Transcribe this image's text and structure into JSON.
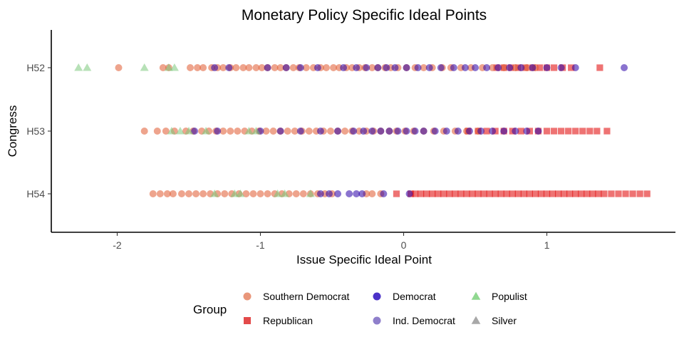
{
  "chart_data": {
    "type": "scatter",
    "title": "Monetary Policy Specific Ideal Points",
    "xlabel": "Issue Specific Ideal Point",
    "ylabel": "Congress",
    "xlim": [
      -2.45,
      1.9
    ],
    "x_ticks": [
      -2,
      -1,
      0,
      1
    ],
    "x_tick_labels": [
      "-2",
      "-1",
      "0",
      "1"
    ],
    "categories": [
      "H52",
      "H53",
      "H54"
    ],
    "grid": false,
    "legend": {
      "title": "Group",
      "position": "bottom",
      "entries": [
        {
          "label": "Southern Democrat",
          "color": "#E9967A",
          "shape": "circle"
        },
        {
          "label": "Republican",
          "color": "#E34A4A",
          "shape": "square"
        },
        {
          "label": "Democrat",
          "color": "#4B32C8",
          "shape": "circle"
        },
        {
          "label": "Ind. Democrat",
          "color": "#8F7FCB",
          "shape": "circle"
        },
        {
          "label": "Populist",
          "color": "#90D890",
          "shape": "triangle"
        },
        {
          "label": "Silver",
          "color": "#A8A8A8",
          "shape": "triangle"
        }
      ]
    },
    "series": [
      {
        "name": "Southern Democrat",
        "color": "#E05A30",
        "shape": "circle",
        "points": [
          {
            "congress": "H52",
            "x": [
              -1.99,
              -1.68,
              -1.64,
              -1.49,
              -1.44,
              -1.4,
              -1.34,
              -1.3,
              -1.26,
              -1.21,
              -1.17,
              -1.12,
              -1.08,
              -1.03,
              -0.99,
              -0.95,
              -0.9,
              -0.86,
              -0.82,
              -0.77,
              -0.73,
              -0.68,
              -0.63,
              -0.58,
              -0.54,
              -0.49,
              -0.45,
              -0.4,
              -0.36,
              -0.31,
              -0.27,
              -0.22,
              -0.18,
              -0.13,
              -0.09,
              -0.04,
              0.02,
              0.08,
              0.14,
              0.2,
              0.27,
              0.33,
              0.4,
              0.47,
              0.55,
              0.62,
              0.7,
              0.78,
              0.86,
              0.92
            ]
          },
          {
            "congress": "H53",
            "x": [
              -1.81,
              -1.72,
              -1.66,
              -1.6,
              -1.52,
              -1.47,
              -1.41,
              -1.36,
              -1.31,
              -1.26,
              -1.21,
              -1.16,
              -1.11,
              -1.06,
              -1.01,
              -0.96,
              -0.91,
              -0.86,
              -0.81,
              -0.76,
              -0.71,
              -0.66,
              -0.61,
              -0.56,
              -0.51,
              -0.46,
              -0.41,
              -0.36,
              -0.31,
              -0.26,
              -0.21,
              -0.16,
              -0.1,
              -0.05,
              0.01,
              0.07,
              0.14,
              0.21,
              0.28,
              0.36,
              0.44,
              0.52
            ]
          },
          {
            "congress": "H54",
            "x": [
              -1.75,
              -1.7,
              -1.65,
              -1.61,
              -1.55,
              -1.5,
              -1.45,
              -1.4,
              -1.35,
              -1.3,
              -1.25,
              -1.2,
              -1.15,
              -1.1,
              -1.05,
              -1.0,
              -0.95,
              -0.9,
              -0.85,
              -0.8,
              -0.75,
              -0.7,
              -0.65,
              -0.6,
              -0.55,
              -0.5,
              -0.26,
              -0.22,
              -0.16
            ]
          }
        ]
      },
      {
        "name": "Republican",
        "color": "#E00000",
        "shape": "square",
        "points": [
          {
            "congress": "H52",
            "x": [
              0.65,
              0.7,
              0.75,
              0.8,
              0.85,
              0.9,
              0.95,
              1.0,
              1.05,
              1.11,
              1.17,
              1.37
            ]
          },
          {
            "congress": "H53",
            "x": [
              0.45,
              0.52,
              0.58,
              0.64,
              0.7,
              0.76,
              0.82,
              0.88,
              0.94,
              1.0,
              1.05,
              1.1,
              1.15,
              1.2,
              1.25,
              1.3,
              1.35,
              1.42
            ]
          },
          {
            "congress": "H54",
            "x": [
              -0.05,
              0.05,
              0.08,
              0.12,
              0.16,
              0.2,
              0.24,
              0.28,
              0.32,
              0.36,
              0.4,
              0.44,
              0.48,
              0.52,
              0.56,
              0.6,
              0.64,
              0.68,
              0.72,
              0.76,
              0.8,
              0.84,
              0.88,
              0.92,
              0.96,
              1.0,
              1.04,
              1.08,
              1.12,
              1.16,
              1.2,
              1.24,
              1.28,
              1.32,
              1.36,
              1.4,
              1.45,
              1.5,
              1.55,
              1.6,
              1.65,
              1.7
            ]
          }
        ]
      },
      {
        "name": "Democrat",
        "color": "#2A00A8",
        "shape": "circle",
        "points": [
          {
            "congress": "H52",
            "x": [
              -1.32,
              -1.22,
              -0.95,
              -0.82,
              -0.72,
              -0.6,
              -0.42,
              -0.33,
              -0.26,
              -0.18,
              -0.12,
              -0.06,
              0.02,
              0.1,
              0.18,
              0.26,
              0.35,
              0.43,
              0.5,
              0.58,
              0.66,
              0.74,
              0.82,
              0.9,
              1.0,
              1.1,
              1.2,
              1.54
            ]
          },
          {
            "congress": "H53",
            "x": [
              -1.46,
              -1.3,
              -1.0,
              -0.86,
              -0.72,
              -0.58,
              -0.46,
              -0.35,
              -0.28,
              -0.22,
              -0.16,
              -0.1,
              -0.04,
              0.02,
              0.08,
              0.14,
              0.22,
              0.3,
              0.38,
              0.46,
              0.54,
              0.62,
              0.7,
              0.78,
              0.86,
              0.94
            ]
          },
          {
            "congress": "H54",
            "x": [
              -0.58,
              -0.52,
              -0.46,
              -0.38,
              -0.33,
              -0.29,
              -0.14,
              0.04
            ]
          }
        ]
      },
      {
        "name": "Populist",
        "color": "#7CC87C",
        "shape": "triangle",
        "points": [
          {
            "congress": "H52",
            "x": [
              -2.27,
              -2.21,
              -1.81,
              -1.64,
              -1.6
            ]
          },
          {
            "congress": "H53",
            "x": [
              -1.62,
              -1.56,
              -1.5,
              -1.38,
              -1.08,
              -1.03
            ]
          },
          {
            "congress": "H54",
            "x": [
              -1.32,
              -1.18,
              -1.14,
              -0.88,
              -0.83,
              -0.65
            ]
          }
        ]
      }
    ]
  }
}
